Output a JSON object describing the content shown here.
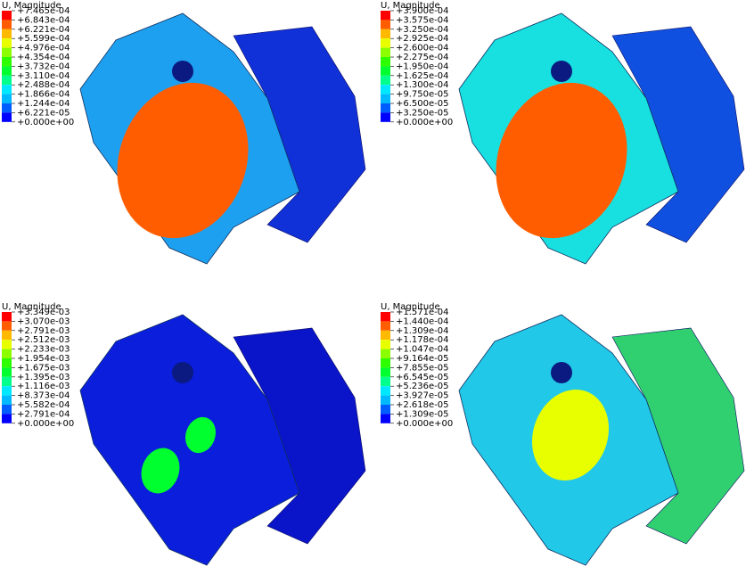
{
  "panels": [
    {
      "title": "U, Magnitude",
      "legend": [
        "+7.465e-04",
        "+6.843e-04",
        "+6.221e-04",
        "+5.599e-04",
        "+4.976e-04",
        "+4.354e-04",
        "+3.732e-04",
        "+3.110e-04",
        "+2.488e-04",
        "+1.866e-04",
        "+1.244e-04",
        "+6.221e-05",
        "+0.000e+00"
      ]
    },
    {
      "title": "U, Magnitude",
      "legend": [
        "+3.900e-04",
        "+3.575e-04",
        "+3.250e-04",
        "+2.925e-04",
        "+2.600e-04",
        "+2.275e-04",
        "+1.950e-04",
        "+1.625e-04",
        "+1.300e-04",
        "+9.750e-05",
        "+6.500e-05",
        "+3.250e-05",
        "+0.000e+00"
      ]
    },
    {
      "title": "U, Magnitude",
      "legend": [
        "+3.349e-03",
        "+3.070e-03",
        "+2.791e-03",
        "+2.512e-03",
        "+2.233e-03",
        "+1.954e-03",
        "+1.675e-03",
        "+1.395e-03",
        "+1.116e-03",
        "+8.373e-04",
        "+5.582e-04",
        "+2.791e-04",
        "+0.000e+00"
      ]
    },
    {
      "title": "U, Magnitude",
      "legend": [
        "+1.571e-04",
        "+1.440e-04",
        "+1.309e-04",
        "+1.178e-04",
        "+1.047e-04",
        "+9.164e-05",
        "+7.855e-05",
        "+6.545e-05",
        "+5.236e-05",
        "+3.927e-05",
        "+2.618e-05",
        "+1.309e-05",
        "+0.000e+00"
      ]
    }
  ]
}
